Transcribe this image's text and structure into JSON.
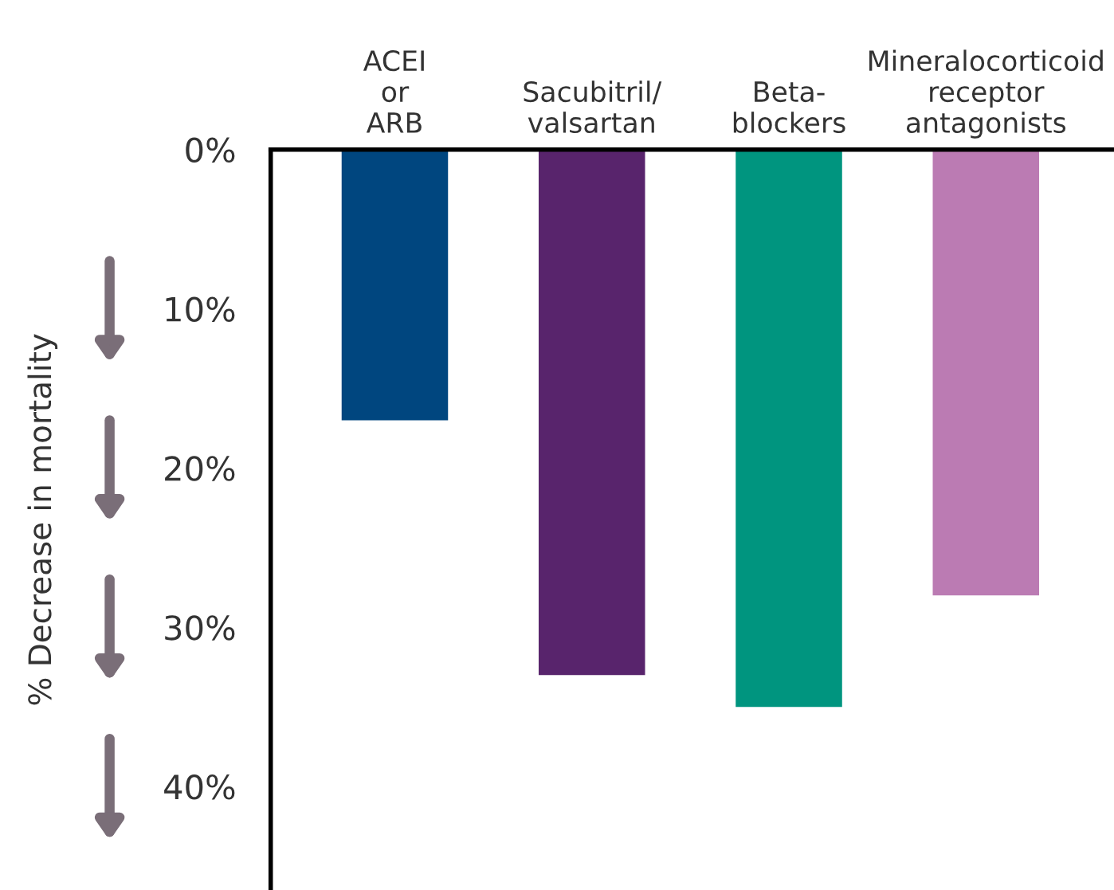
{
  "chart_data": {
    "type": "bar",
    "ylabel": "% Decrease in mortality",
    "categories": [
      "ACEI\nor\nARB",
      "Sacubitril/\nvalsartan",
      "Beta-\nblockers",
      "Mineralocorticoid\nreceptor\nantagonists"
    ],
    "values": [
      17,
      33,
      35,
      28
    ],
    "colors": [
      "#00467f",
      "#58246c",
      "#00957f",
      "#bb7bb3"
    ],
    "ylim": [
      46.5,
      0
    ],
    "yticks": [
      {
        "value": 0,
        "label": "0%"
      },
      {
        "value": 10,
        "label": "10%"
      },
      {
        "value": 20,
        "label": "20%"
      },
      {
        "value": 30,
        "label": "30%"
      },
      {
        "value": 40,
        "label": "40%"
      }
    ],
    "grid": false,
    "legend": false
  }
}
